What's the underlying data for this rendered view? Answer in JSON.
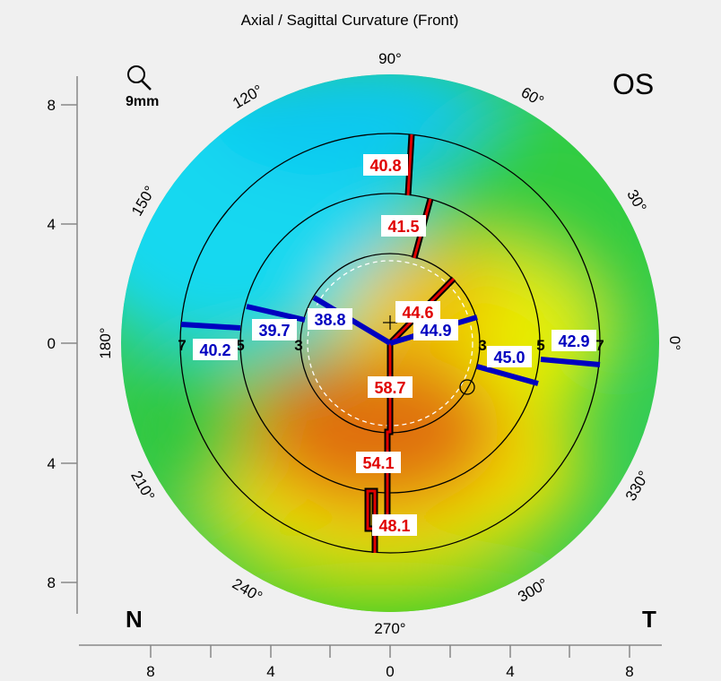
{
  "title": "Axial / Sagittal Curvature (Front)",
  "eye": "OS",
  "zoom_label": "9mm",
  "nasal_label": "N",
  "temporal_label": "T",
  "chart_data": {
    "type": "heatmap",
    "title": "Axial / Sagittal Curvature (Front)",
    "map_diameter_mm": 9,
    "yaxis_ticks": [
      "8",
      "4",
      "0",
      "4",
      "8"
    ],
    "xaxis_ticks": [
      "8",
      "4",
      "0",
      "4",
      "8"
    ],
    "angle_labels": [
      "90°",
      "60°",
      "30°",
      "0°",
      "330°",
      "300°",
      "270°",
      "240°",
      "210°",
      "180°",
      "150°",
      "120°"
    ],
    "ring_labels_left": [
      "7",
      "5",
      "3"
    ],
    "ring_labels_right": [
      "3",
      "5",
      "7"
    ],
    "rings_mm": [
      3,
      5,
      7
    ],
    "steep_meridian_values": [
      {
        "zone": "7mm upper",
        "value": "40.8"
      },
      {
        "zone": "5mm upper",
        "value": "41.5"
      },
      {
        "zone": "3mm upper",
        "value": "44.6"
      },
      {
        "zone": "3mm lower",
        "value": "58.7"
      },
      {
        "zone": "5mm lower",
        "value": "54.1"
      },
      {
        "zone": "7mm lower",
        "value": "48.1"
      }
    ],
    "flat_meridian_values": [
      {
        "zone": "7mm nasal",
        "value": "40.2"
      },
      {
        "zone": "5mm nasal",
        "value": "39.7"
      },
      {
        "zone": "3mm nasal",
        "value": "38.8"
      },
      {
        "zone": "3mm temporal",
        "value": "44.9"
      },
      {
        "zone": "5mm temporal",
        "value": "45.0"
      },
      {
        "zone": "7mm temporal",
        "value": "42.9"
      }
    ],
    "colors": {
      "steep": "#e00000",
      "flat": "#0000c0"
    }
  }
}
